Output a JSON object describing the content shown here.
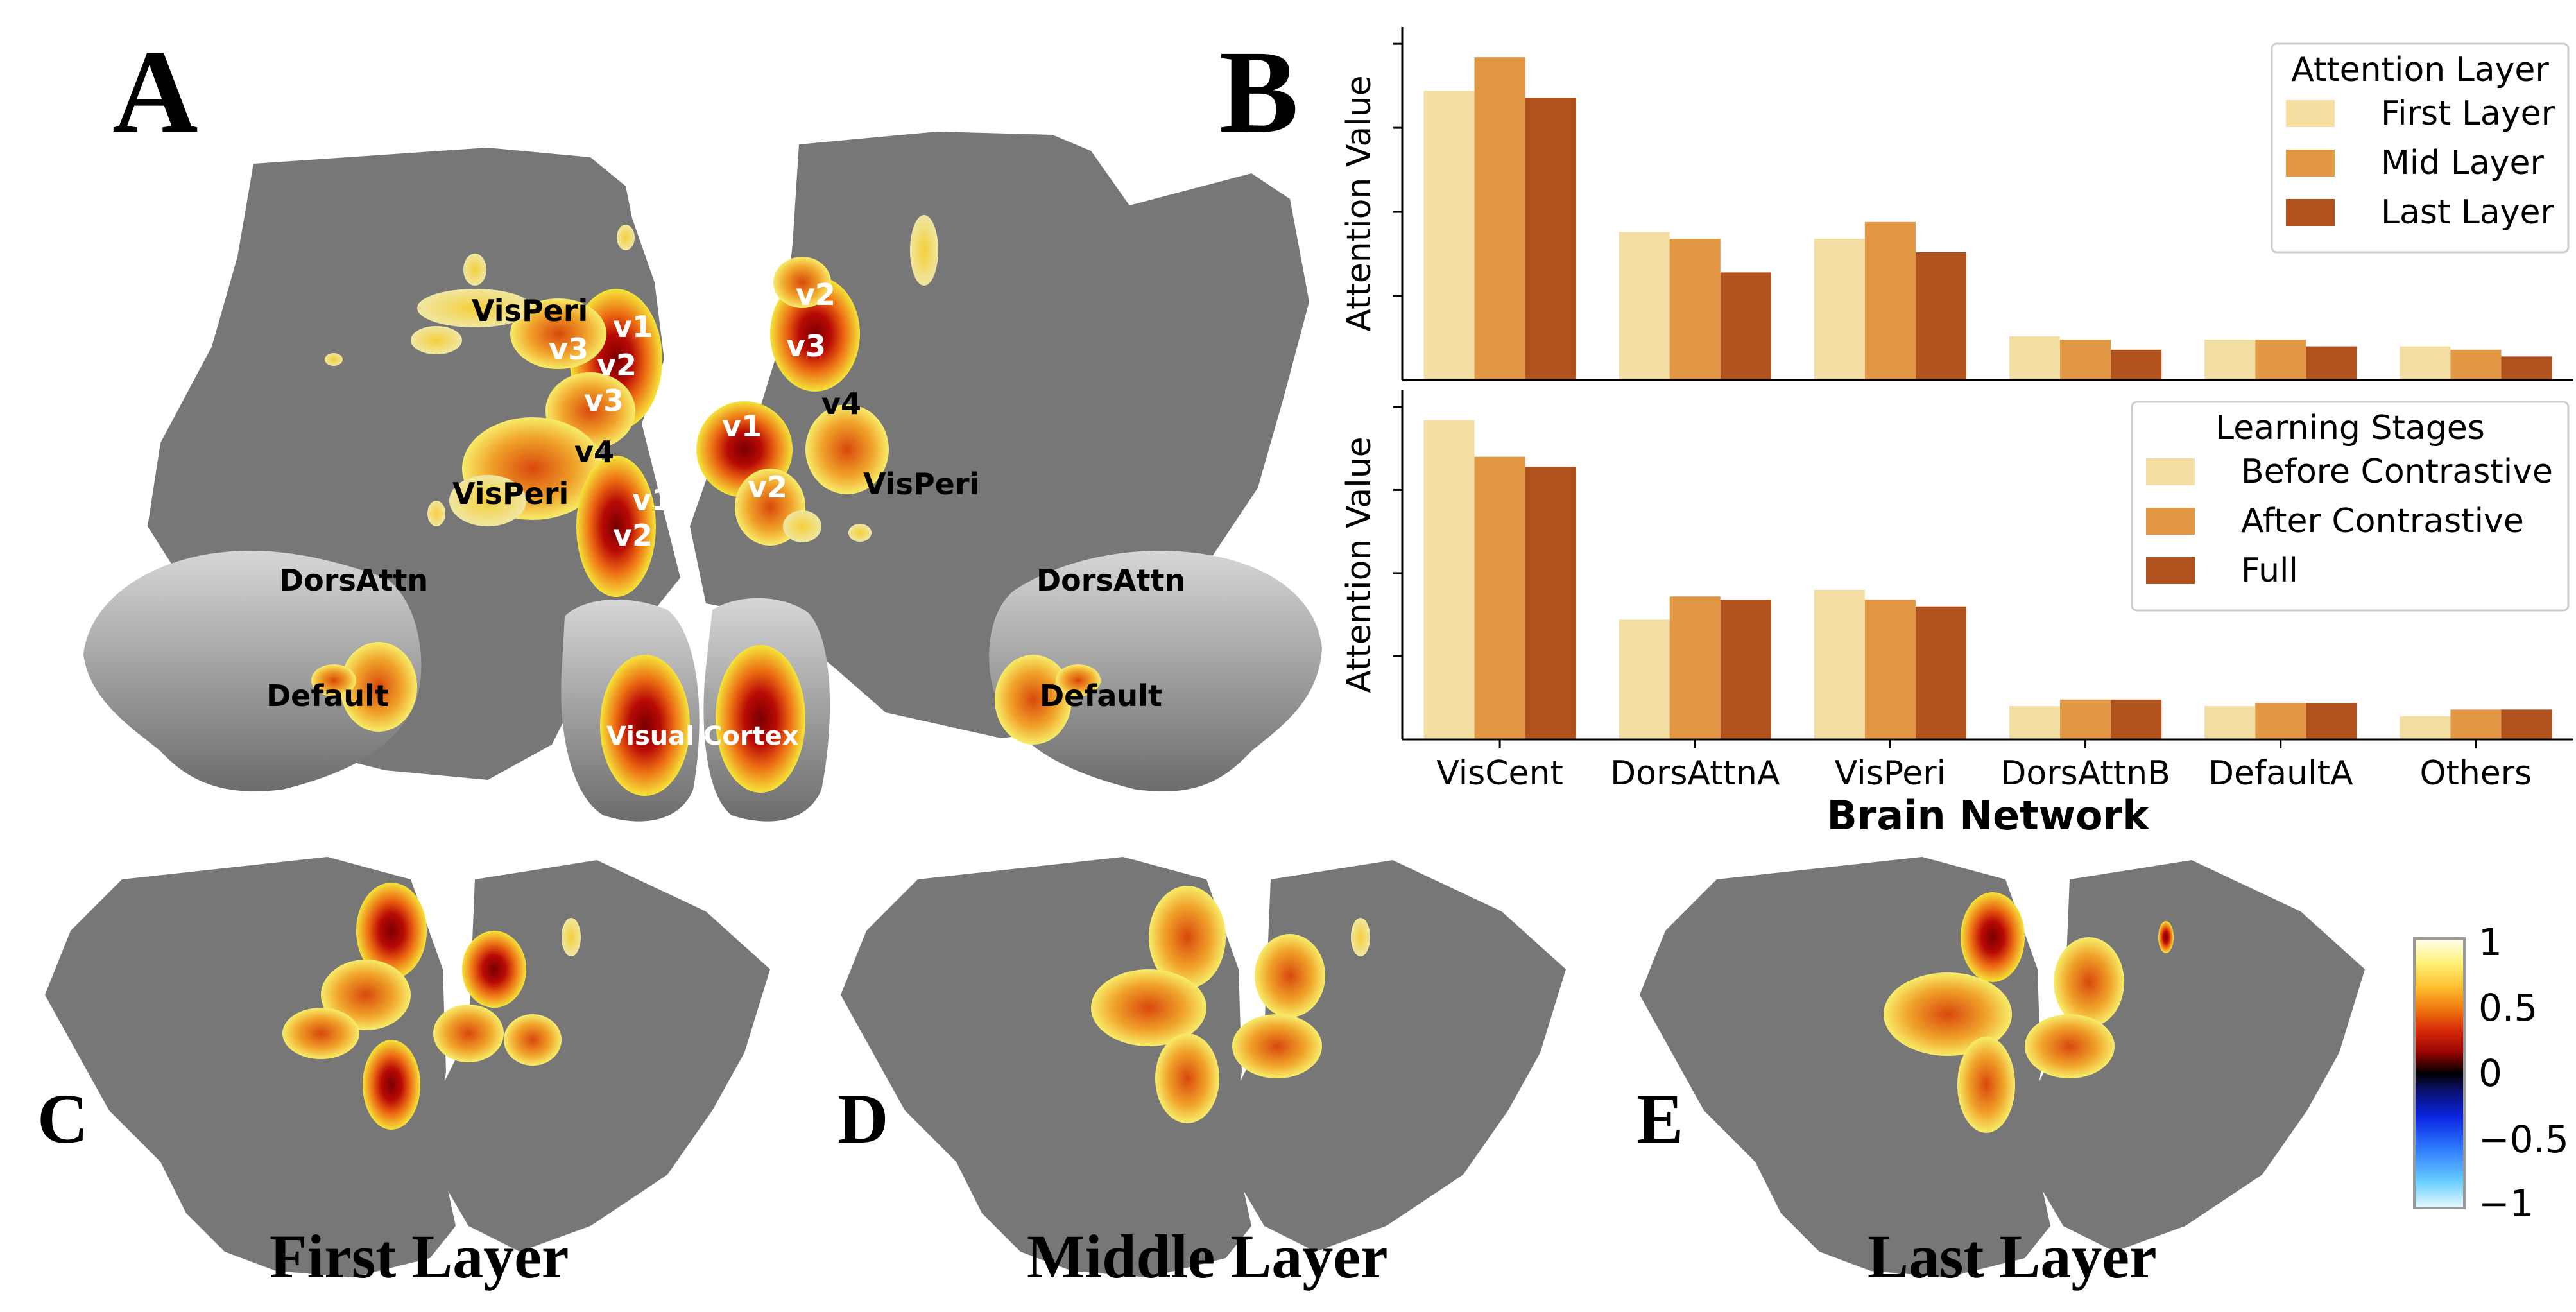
{
  "panels": {
    "a": "A",
    "b": "B",
    "c": "C",
    "d": "D",
    "e": "E"
  },
  "brain_labels": {
    "visperi_1": "VisPeri",
    "visperi_2": "VisPeri",
    "visperi_3": "VisPeri",
    "v1_a": "v1",
    "v2_a": "v2",
    "v3_a": "v3",
    "v3_b": "v3",
    "v4_a": "v4",
    "v1_b": "v1",
    "v2_b": "v2",
    "v2_c": "v2",
    "v3_c": "v3",
    "v4_c": "v4",
    "v1_c": "v1",
    "v2_d": "v2",
    "dorsattn_l": "DorsAttn",
    "default_l": "Default",
    "dorsattn_r": "DorsAttn",
    "default_r": "Default",
    "visual_cortex": "Visual Cortex"
  },
  "layer_titles": {
    "first": "First Layer",
    "middle": "Middle Layer",
    "last": "Last Layer"
  },
  "colorbar": {
    "ticks": [
      "1",
      "0.5",
      "0",
      "−0.5",
      "−1"
    ],
    "colors": [
      "#fffef0",
      "#fff27a",
      "#ffbf2f",
      "#f07a10",
      "#d92a0a",
      "#9c0503",
      "#3a0000",
      "#000000",
      "#0a1066",
      "#0a24e0",
      "#2f7bff",
      "#67cdff",
      "#e8fbff"
    ]
  },
  "chart_data": [
    {
      "type": "bar",
      "title": "",
      "xlabel": "",
      "ylabel": "Attention Value",
      "ylim": [
        0,
        1.05
      ],
      "grid": false,
      "categories": [
        "VisCent",
        "DorsAttnA",
        "VisPeri",
        "DorsAttnB",
        "DefaultA",
        "Others"
      ],
      "legend": {
        "title": "Attention Layer",
        "position": "top-right"
      },
      "series": [
        {
          "name": "First Layer",
          "color": "#f2dda3",
          "values": [
            0.86,
            0.44,
            0.42,
            0.13,
            0.12,
            0.1
          ]
        },
        {
          "name": "Mid Layer",
          "color": "#e29745",
          "values": [
            0.96,
            0.42,
            0.47,
            0.12,
            0.12,
            0.09
          ]
        },
        {
          "name": "Last Layer",
          "color": "#b0521e",
          "values": [
            0.84,
            0.32,
            0.38,
            0.09,
            0.1,
            0.07
          ]
        }
      ]
    },
    {
      "type": "bar",
      "title": "",
      "xlabel": "Brain Network",
      "ylabel": "Attention Value",
      "ylim": [
        0,
        1.05
      ],
      "grid": false,
      "categories": [
        "VisCent",
        "DorsAttnA",
        "VisPeri",
        "DorsAttnB",
        "DefaultA",
        "Others"
      ],
      "legend": {
        "title": "Learning Stages",
        "position": "top-right"
      },
      "series": [
        {
          "name": "Before Contrastive",
          "color": "#f2dda3",
          "values": [
            0.96,
            0.36,
            0.45,
            0.1,
            0.1,
            0.07
          ]
        },
        {
          "name": "After Contrastive",
          "color": "#e29745",
          "values": [
            0.85,
            0.43,
            0.42,
            0.12,
            0.11,
            0.09
          ]
        },
        {
          "name": "Full",
          "color": "#b0521e",
          "values": [
            0.82,
            0.42,
            0.4,
            0.12,
            0.11,
            0.09
          ]
        }
      ]
    }
  ]
}
